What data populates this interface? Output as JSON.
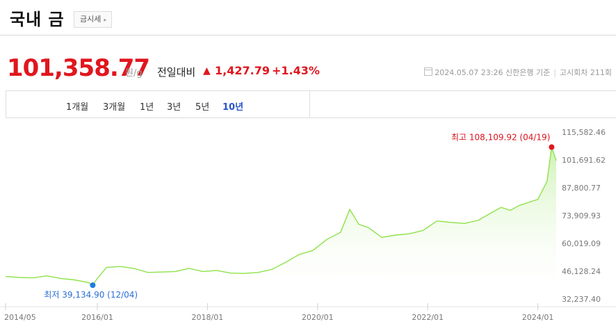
{
  "header": {
    "title": "국내 금",
    "badge": "금시세"
  },
  "price": {
    "value": "101,358.77",
    "unit": "원/g",
    "change_label": "전일대비",
    "change_value": "1,427.79",
    "change_pct": "+1.43%",
    "date": "2024.05.07 23:26",
    "source": "신한은행 기준",
    "notice": "고시회차 211회"
  },
  "tabs": [
    {
      "label": "1개월",
      "active": false
    },
    {
      "label": "3개월",
      "active": false
    },
    {
      "label": "1년",
      "active": false
    },
    {
      "label": "3년",
      "active": false
    },
    {
      "label": "5년",
      "active": false
    },
    {
      "label": "10년",
      "active": true
    }
  ],
  "colors": {
    "up": "#e0161e",
    "line": "#8ee24a",
    "area": "#d8f5c4",
    "high_marker": "#e0161e",
    "low_marker": "#1e7be0",
    "active_tab": "#2a53c8"
  },
  "chart_data": {
    "type": "area",
    "y_ticks": [
      "115,582.46",
      "101,691.62",
      "87,800.77",
      "73,909.93",
      "60,019.09",
      "46,128.24",
      "32,237.40"
    ],
    "ylim": [
      32237.4,
      115582.46
    ],
    "x_ticks": [
      "2014/05",
      "2016/01",
      "2018/01",
      "2020/01",
      "2022/01",
      "2024/01"
    ],
    "xlim": [
      "2014-05",
      "2024-05"
    ],
    "high": {
      "label": "최고 108,109.92 (04/19)",
      "date": "2024-04",
      "value": 108109.92
    },
    "low": {
      "label": "최저 39,134.90 (12/04)",
      "date": "2015-12",
      "value": 39134.9
    },
    "series": [
      {
        "x": [
          "2014-05",
          "2014-08",
          "2014-11",
          "2015-02",
          "2015-05",
          "2015-08",
          "2015-11",
          "2015-12",
          "2016-01",
          "2016-03",
          "2016-06",
          "2016-09",
          "2016-12",
          "2017-03",
          "2017-06",
          "2017-09",
          "2017-12",
          "2018-03",
          "2018-06",
          "2018-09",
          "2018-12",
          "2019-03",
          "2019-06",
          "2019-09",
          "2019-12",
          "2020-03",
          "2020-06",
          "2020-08",
          "2020-10",
          "2020-12",
          "2021-03",
          "2021-06",
          "2021-09",
          "2021-12",
          "2022-03",
          "2022-06",
          "2022-09",
          "2022-12",
          "2023-03",
          "2023-05",
          "2023-07",
          "2023-09",
          "2023-11",
          "2024-01",
          "2024-03",
          "2024-04",
          "2024-05"
        ],
        "y": [
          43500,
          43000,
          42800,
          43800,
          42500,
          41800,
          40500,
          39134.9,
          42500,
          48000,
          48500,
          47500,
          45500,
          45700,
          46000,
          47500,
          46000,
          46500,
          45200,
          45000,
          45500,
          47000,
          50500,
          54500,
          56500,
          62000,
          65500,
          77000,
          69500,
          68000,
          63000,
          64200,
          64800,
          66500,
          71200,
          70500,
          70000,
          71500,
          75500,
          78000,
          76500,
          79000,
          80500,
          82000,
          91000,
          108109.92,
          101358.77
        ]
      }
    ]
  }
}
